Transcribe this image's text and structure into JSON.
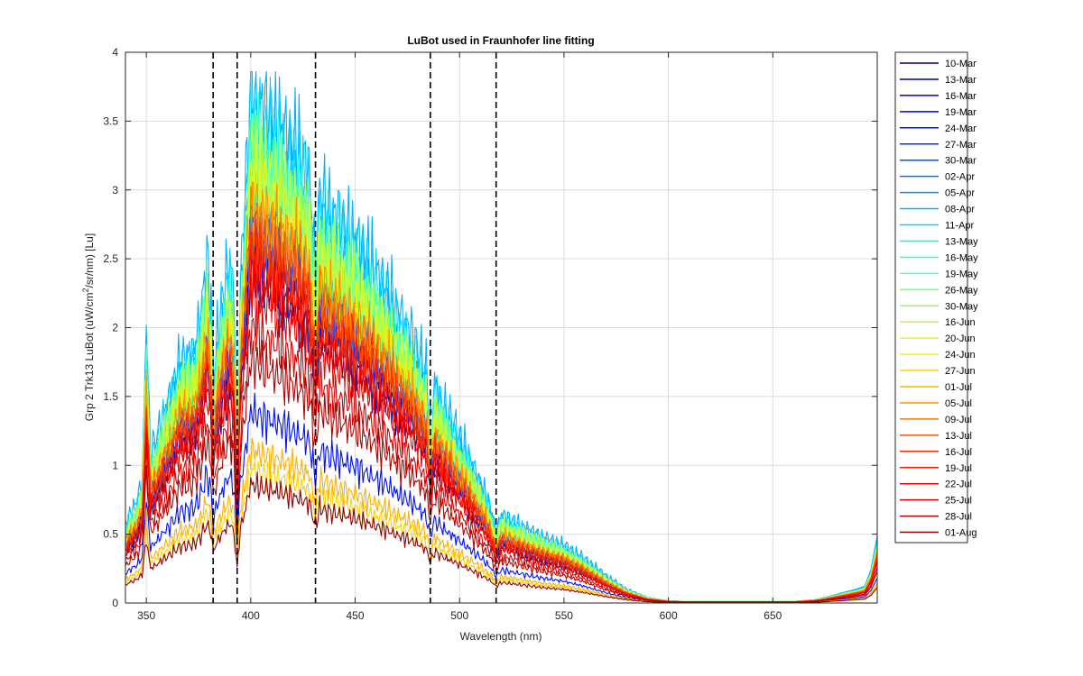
{
  "chart_data": {
    "type": "line",
    "title": "LuBot used in Fraunhofer line fitting",
    "xlabel": "Wavelength (nm)",
    "ylabel": "Grp 2 Trk13 LuBot (uW/cm^2/sr/nm) [Lu]",
    "ylabel_parts": {
      "pre": "Grp 2 Trk13 LuBot (uW/cm",
      "sup": "2",
      "post": "/sr/nm) [Lu]"
    },
    "xlim": [
      340,
      700
    ],
    "ylim": [
      0,
      4
    ],
    "xticks": [
      350,
      400,
      450,
      500,
      550,
      600,
      650
    ],
    "yticks": [
      0,
      0.5,
      1,
      1.5,
      2,
      2.5,
      3,
      3.5,
      4
    ],
    "ytick_labels": [
      "0",
      "0.5",
      "1",
      "1.5",
      "2",
      "2.5",
      "3",
      "3.5",
      "4"
    ],
    "grid": true,
    "legend_position": "outside-right",
    "fraunhofer_lines_nm": [
      382,
      393.5,
      431,
      486,
      517.5
    ],
    "spectrum_shape": {
      "x": [
        340,
        342,
        345,
        348,
        350,
        352,
        355,
        358,
        360,
        363,
        366,
        370,
        373,
        376,
        379,
        381,
        382,
        384,
        387,
        390,
        392,
        393.5,
        395,
        397,
        400,
        405,
        410,
        415,
        420,
        425,
        428,
        431,
        433,
        436,
        440,
        445,
        450,
        455,
        460,
        465,
        470,
        475,
        480,
        484,
        486,
        488,
        492,
        496,
        500,
        505,
        510,
        515,
        517.5,
        520,
        525,
        530,
        540,
        550,
        560,
        570,
        580,
        590,
        600,
        610,
        620,
        630,
        640,
        650,
        660,
        670,
        675,
        680,
        685,
        690,
        694,
        697,
        700
      ],
      "y": [
        0.14,
        0.16,
        0.18,
        0.22,
        0.5,
        0.27,
        0.3,
        0.34,
        0.36,
        0.4,
        0.44,
        0.45,
        0.46,
        0.52,
        0.62,
        0.54,
        0.4,
        0.48,
        0.56,
        0.62,
        0.55,
        0.28,
        0.58,
        0.7,
        0.93,
        0.9,
        0.88,
        0.86,
        0.83,
        0.8,
        0.78,
        0.6,
        0.74,
        0.72,
        0.7,
        0.68,
        0.66,
        0.63,
        0.6,
        0.57,
        0.53,
        0.5,
        0.46,
        0.42,
        0.32,
        0.4,
        0.36,
        0.33,
        0.3,
        0.26,
        0.22,
        0.17,
        0.13,
        0.16,
        0.15,
        0.14,
        0.12,
        0.105,
        0.08,
        0.05,
        0.025,
        0.01,
        0.004,
        0.003,
        0.003,
        0.003,
        0.003,
        0.003,
        0.003,
        0.006,
        0.01,
        0.015,
        0.02,
        0.025,
        0.03,
        0.06,
        0.12
      ]
    },
    "series": [
      {
        "name": "10-Mar",
        "scale": 2.6,
        "color": "#00008f"
      },
      {
        "name": "13-Mar",
        "scale": 2.7,
        "color": "#00009f"
      },
      {
        "name": "16-Mar",
        "scale": 2.8,
        "color": "#0000bf"
      },
      {
        "name": "19-Mar",
        "scale": 2.9,
        "color": "#0000df"
      },
      {
        "name": "24-Mar",
        "scale": 1.5,
        "color": "#0010ff"
      },
      {
        "name": "27-Mar",
        "scale": 3.0,
        "color": "#0030ff"
      },
      {
        "name": "30-Mar",
        "scale": 3.1,
        "color": "#0050ff"
      },
      {
        "name": "02-Apr",
        "scale": 3.3,
        "color": "#0070ff"
      },
      {
        "name": "05-Apr",
        "scale": 3.55,
        "color": "#0090ff"
      },
      {
        "name": "08-Apr",
        "scale": 4.05,
        "color": "#00b0ff"
      },
      {
        "name": "11-Apr",
        "scale": 3.85,
        "color": "#00d0ff"
      },
      {
        "name": "13-May",
        "scale": 3.5,
        "color": "#10f0ef"
      },
      {
        "name": "16-May",
        "scale": 3.6,
        "color": "#30ffcf"
      },
      {
        "name": "19-May",
        "scale": 3.45,
        "color": "#50ffaf"
      },
      {
        "name": "26-May",
        "scale": 3.4,
        "color": "#70ff8f"
      },
      {
        "name": "30-May",
        "scale": 3.5,
        "color": "#90ff6f"
      },
      {
        "name": "16-Jun",
        "scale": 3.55,
        "color": "#b0ff4f"
      },
      {
        "name": "20-Jun",
        "scale": 3.4,
        "color": "#d0ff2f"
      },
      {
        "name": "24-Jun",
        "scale": 3.2,
        "color": "#f0f010"
      },
      {
        "name": "27-Jun",
        "scale": 1.05,
        "color": "#ffd000"
      },
      {
        "name": "01-Jul",
        "scale": 1.2,
        "color": "#ffb000"
      },
      {
        "name": "05-Jul",
        "scale": 3.15,
        "color": "#ff9000"
      },
      {
        "name": "09-Jul",
        "scale": 3.0,
        "color": "#ff7000"
      },
      {
        "name": "13-Jul",
        "scale": 2.9,
        "color": "#ff5000"
      },
      {
        "name": "16-Jul",
        "scale": 2.8,
        "color": "#ff3000"
      },
      {
        "name": "19-Jul",
        "scale": 2.6,
        "color": "#ff1000"
      },
      {
        "name": "22-Jul",
        "scale": 2.45,
        "color": "#ef0000"
      },
      {
        "name": "25-Jul",
        "scale": 2.15,
        "color": "#cf0000"
      },
      {
        "name": "28-Jul",
        "scale": 1.9,
        "color": "#af0000"
      },
      {
        "name": "01-Aug",
        "scale": 0.93,
        "color": "#8f0000"
      }
    ]
  }
}
